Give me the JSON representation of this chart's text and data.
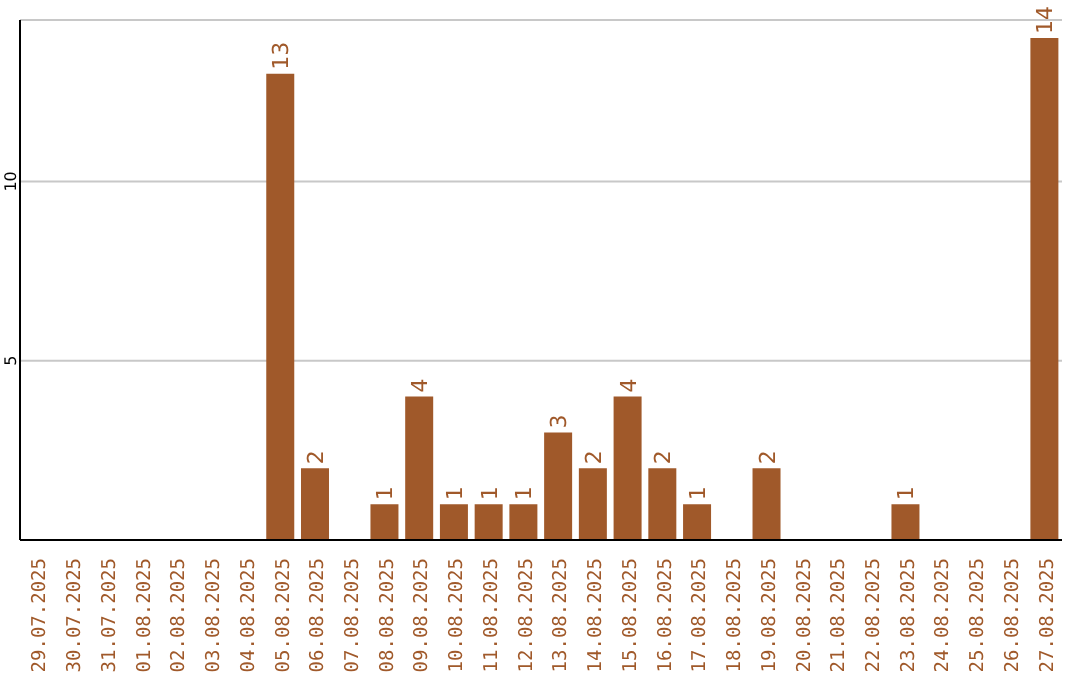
{
  "chart_data": {
    "type": "bar",
    "categories": [
      "29.07.2025",
      "30.07.2025",
      "31.07.2025",
      "01.08.2025",
      "02.08.2025",
      "03.08.2025",
      "04.08.2025",
      "05.08.2025",
      "06.08.2025",
      "07.08.2025",
      "08.08.2025",
      "09.08.2025",
      "10.08.2025",
      "11.08.2025",
      "12.08.2025",
      "13.08.2025",
      "14.08.2025",
      "15.08.2025",
      "16.08.2025",
      "17.08.2025",
      "18.08.2025",
      "19.08.2025",
      "20.08.2025",
      "21.08.2025",
      "22.08.2025",
      "23.08.2025",
      "24.08.2025",
      "25.08.2025",
      "26.08.2025",
      "27.08.2025"
    ],
    "values": [
      0,
      0,
      0,
      0,
      0,
      0,
      0,
      13,
      2,
      0,
      1,
      4,
      1,
      1,
      1,
      3,
      2,
      4,
      2,
      1,
      0,
      2,
      0,
      0,
      0,
      1,
      0,
      0,
      0,
      14
    ],
    "value_labels": [
      null,
      null,
      null,
      null,
      null,
      null,
      null,
      "13",
      "2",
      null,
      "1",
      "4",
      "1",
      "1",
      "1",
      "3",
      "2",
      "4",
      "2",
      "1",
      null,
      "2",
      null,
      null,
      null,
      "1",
      null,
      null,
      null,
      "14"
    ],
    "color": "#a0592a",
    "ylim": [
      0,
      14.5
    ],
    "yticks": [
      5,
      10
    ],
    "grid": "y"
  }
}
